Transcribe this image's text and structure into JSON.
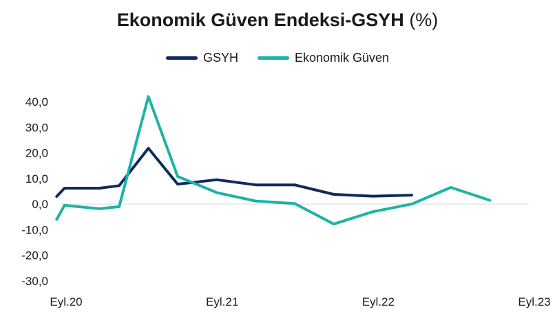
{
  "chart_data": {
    "type": "line",
    "title": "Ekonomik Güven Endeksi-GSYH",
    "title_unit": "(%)",
    "ylim": [
      -30,
      40
    ],
    "yticks": [
      40,
      30,
      20,
      10,
      0,
      -10,
      -20,
      -30
    ],
    "ytick_labels": [
      "40,0",
      "30,0",
      "20,0",
      "10,0",
      "0,0",
      "-10,0",
      "-20,0",
      "-30,0"
    ],
    "x_tick_labels": [
      {
        "label": "Eyl.20",
        "index": 0
      },
      {
        "label": "Eyl.21",
        "index": 4
      },
      {
        "label": "Eyl.22",
        "index": 8
      },
      {
        "label": "Eyl.23",
        "index": 12
      }
    ],
    "legend_position": "top-center",
    "series": [
      {
        "name": "GSYH",
        "color": "#0f2a5e",
        "x": [
          -0.1,
          0.1,
          1,
          1.5,
          2.25,
          3,
          4,
          5,
          6,
          7,
          8,
          9,
          10
        ],
        "values": [
          3,
          6.2,
          6.2,
          7.2,
          21.8,
          7.8,
          9.5,
          7.5,
          7.5,
          3.8,
          3.1,
          3.5,
          null
        ]
      },
      {
        "name": "Ekonomik Güven",
        "color": "#1db3a6",
        "x": [
          -0.1,
          0.1,
          1,
          1.5,
          2.25,
          3,
          4,
          5,
          6,
          7,
          8,
          9,
          10,
          11
        ],
        "values": [
          -6,
          -0.5,
          -1.8,
          -1,
          42,
          10.8,
          4.5,
          1.2,
          0.2,
          -7.8,
          -3,
          0,
          6.5,
          1.5
        ]
      }
    ]
  }
}
